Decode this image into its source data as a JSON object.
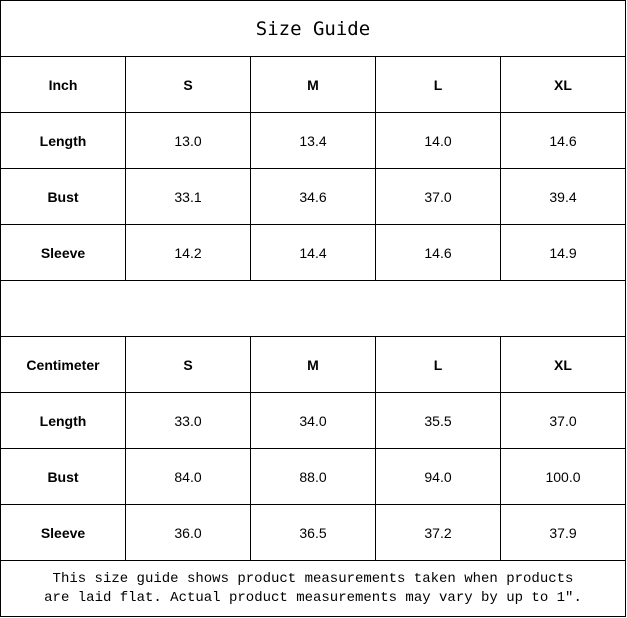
{
  "title": "Size Guide",
  "inch_table": {
    "header": [
      "Inch",
      "S",
      "M",
      "L",
      "XL"
    ],
    "rows": [
      {
        "label": "Length",
        "values": [
          "13.0",
          "13.4",
          "14.0",
          "14.6"
        ]
      },
      {
        "label": "Bust",
        "values": [
          "33.1",
          "34.6",
          "37.0",
          "39.4"
        ]
      },
      {
        "label": "Sleeve",
        "values": [
          "14.2",
          "14.4",
          "14.6",
          "14.9"
        ]
      }
    ]
  },
  "cm_table": {
    "header": [
      "Centimeter",
      "S",
      "M",
      "L",
      "XL"
    ],
    "rows": [
      {
        "label": "Length",
        "values": [
          "33.0",
          "34.0",
          "35.5",
          "37.0"
        ]
      },
      {
        "label": "Bust",
        "values": [
          "84.0",
          "88.0",
          "94.0",
          "100.0"
        ]
      },
      {
        "label": "Sleeve",
        "values": [
          "36.0",
          "36.5",
          "37.2",
          "37.9"
        ]
      }
    ]
  },
  "footer": {
    "line1": "This size guide shows product measurements taken when products",
    "line2": "are laid flat. Actual product measurements may vary by up to 1″."
  }
}
